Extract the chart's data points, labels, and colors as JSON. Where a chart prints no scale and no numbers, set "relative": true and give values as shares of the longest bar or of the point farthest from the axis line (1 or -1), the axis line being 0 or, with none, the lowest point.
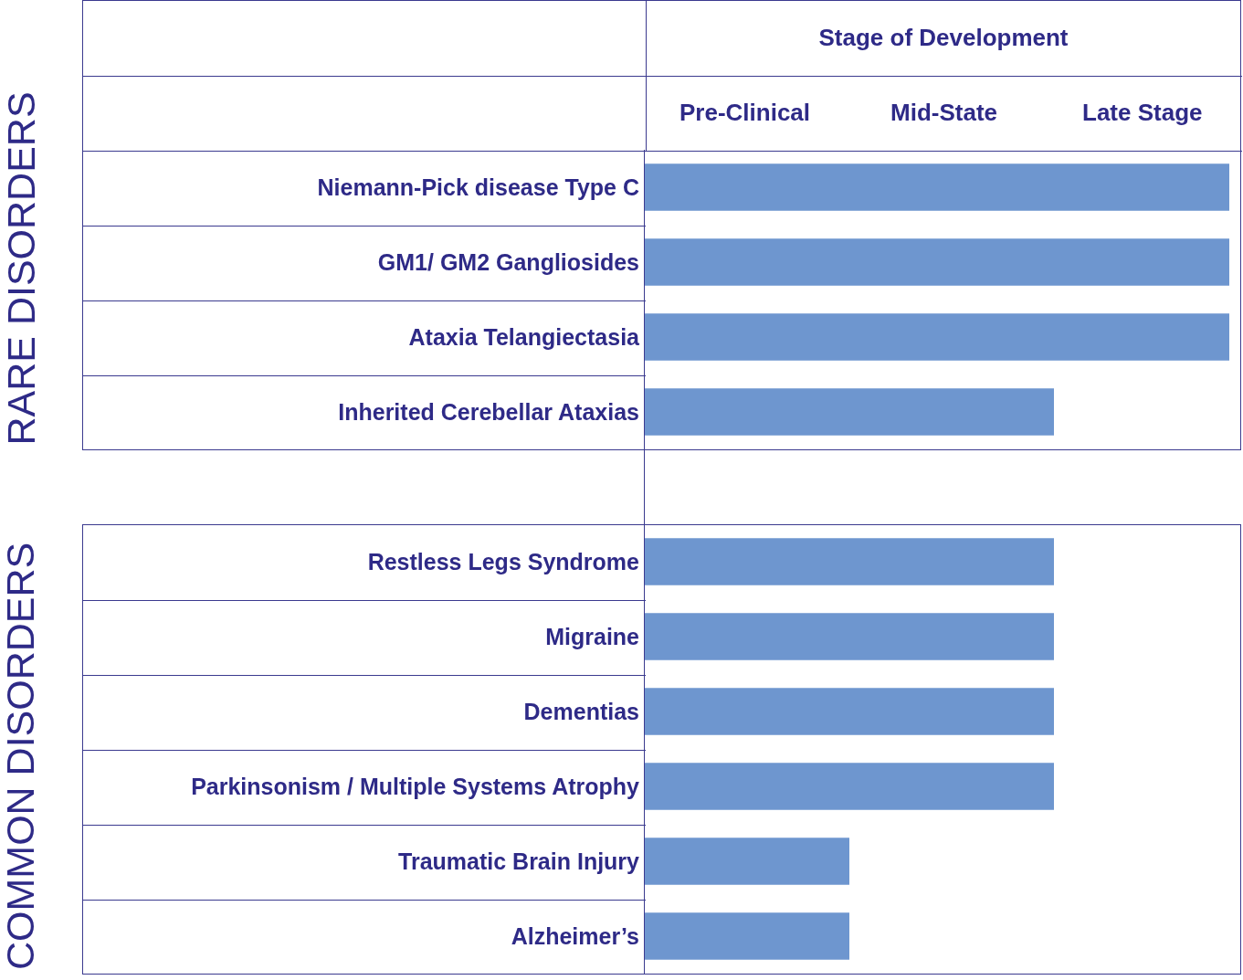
{
  "chart_data": {
    "type": "bar",
    "orientation": "horizontal",
    "relative": true,
    "title": "Stage of Development",
    "annotations": [
      "Pre-Clinical",
      "Mid-State",
      "Late Stage",
      "RARE DISORDERS",
      "COMMON DISORDERS"
    ],
    "categories": [
      "Niemann-Pick disease Type C",
      "GM1/ GM2 Gangliosides",
      "Ataxia Telangiectasia",
      "Inherited Cerebellar Ataxias",
      null,
      "Restless Legs Syndrome",
      "Migraine",
      "Dementias",
      "Parkinsonism / Multiple Systems Atrophy",
      "Traumatic Brain Injury",
      "Alzheimer’s"
    ],
    "values": [
      1,
      1,
      1,
      0.7,
      null,
      0.7,
      0.7,
      0.7,
      0.7,
      0.35,
      0.35
    ],
    "color": "#6e96cf"
  }
}
